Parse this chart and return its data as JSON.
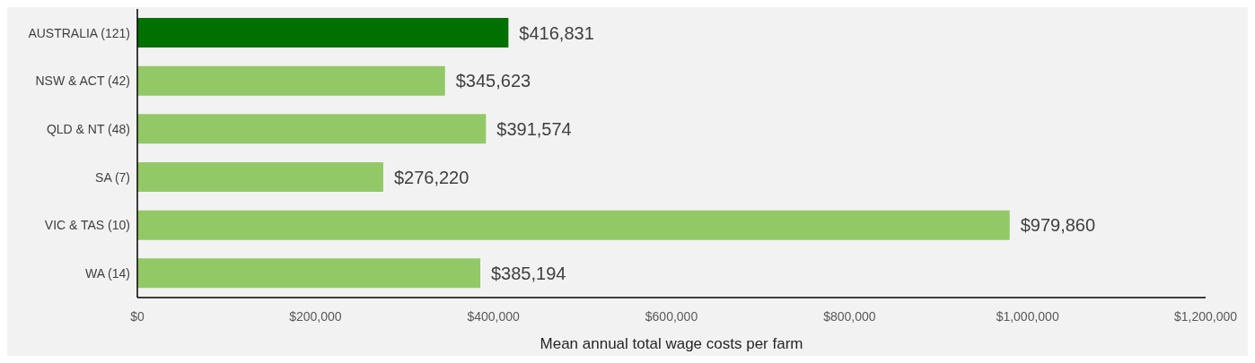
{
  "chart_data": {
    "type": "bar",
    "orientation": "horizontal",
    "xlabel": "Mean annual total wage costs per farm",
    "categories": [
      "AUSTRALIA (121)",
      "NSW & ACT (42)",
      "QLD & NT (48)",
      "SA (7)",
      "VIC & TAS (10)",
      "WA (14)"
    ],
    "values": [
      416831,
      345623,
      391574,
      276220,
      979860,
      385194
    ],
    "colors": [
      "#007000",
      "#92c966",
      "#92c966",
      "#92c966",
      "#92c966",
      "#92c966"
    ],
    "value_labels": [
      "$416,831",
      "$345,623",
      "$391,574",
      "$276,220",
      "$979,860",
      "$385,194"
    ],
    "xlim": [
      0,
      1200000
    ],
    "xticks": [
      {
        "value": 0,
        "label": "$0"
      },
      {
        "value": 200000,
        "label": "$200,000"
      },
      {
        "value": 400000,
        "label": "$400,000"
      },
      {
        "value": 600000,
        "label": "$600,000"
      },
      {
        "value": 800000,
        "label": "$800,000"
      },
      {
        "value": 1000000,
        "label": "$1,000,000"
      },
      {
        "value": 1200000,
        "label": "$1,200,000"
      }
    ],
    "grid": false,
    "legend": false
  }
}
